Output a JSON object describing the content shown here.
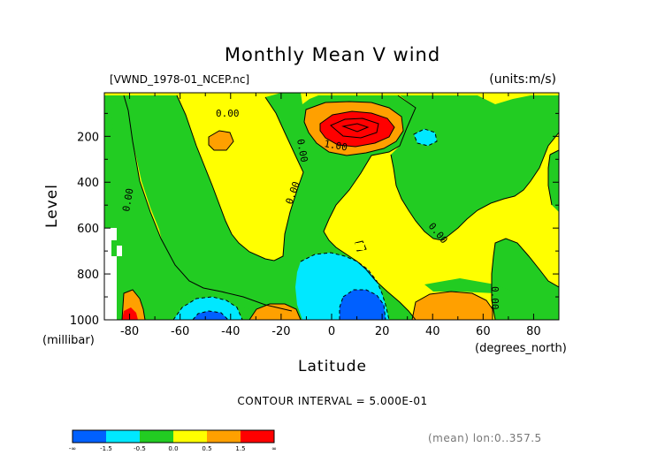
{
  "title": "Monthly Mean V wind",
  "dataset_label": "[VWND_1978-01_NCEP.nc]",
  "units_label": "(units:m/s)",
  "contour_interval_label": "CONTOUR INTERVAL = 5.000E-01",
  "mean_note": "(mean) lon:0..357.5",
  "colors": {
    "lt_neg15": "#0060ff",
    "neg15_neg05": "#00e8ff",
    "neg05_0": "#22cc22",
    "0_05": "#ffff00",
    "05_15": "#ffa000",
    "gt_15": "#ff0000"
  },
  "chart_data": {
    "type": "contour",
    "title": "Monthly Mean V wind",
    "xlabel": "Latitude",
    "x_unit_label": "(degrees_north)",
    "ylabel": "Level",
    "y_unit_label": "(millibar)",
    "xlim": [
      -90,
      90
    ],
    "ylim": [
      1000,
      10
    ],
    "x_ticks": [
      -80,
      -60,
      -40,
      -20,
      0,
      20,
      40,
      60,
      80
    ],
    "y_ticks": [
      200,
      400,
      600,
      800,
      1000
    ],
    "contour_labels": [
      "0.00",
      "0.00",
      "0.00",
      "0.00",
      "0.00",
      "0.00",
      "1.00"
    ],
    "colorbar": {
      "tick_labels": [
        "-∞",
        "-1.5",
        "-0.5",
        "0.0",
        "0.5",
        "1.5",
        "∞"
      ],
      "colors": [
        "#0060ff",
        "#00e8ff",
        "#22cc22",
        "#ffff00",
        "#ffa000",
        "#ff0000"
      ]
    }
  }
}
